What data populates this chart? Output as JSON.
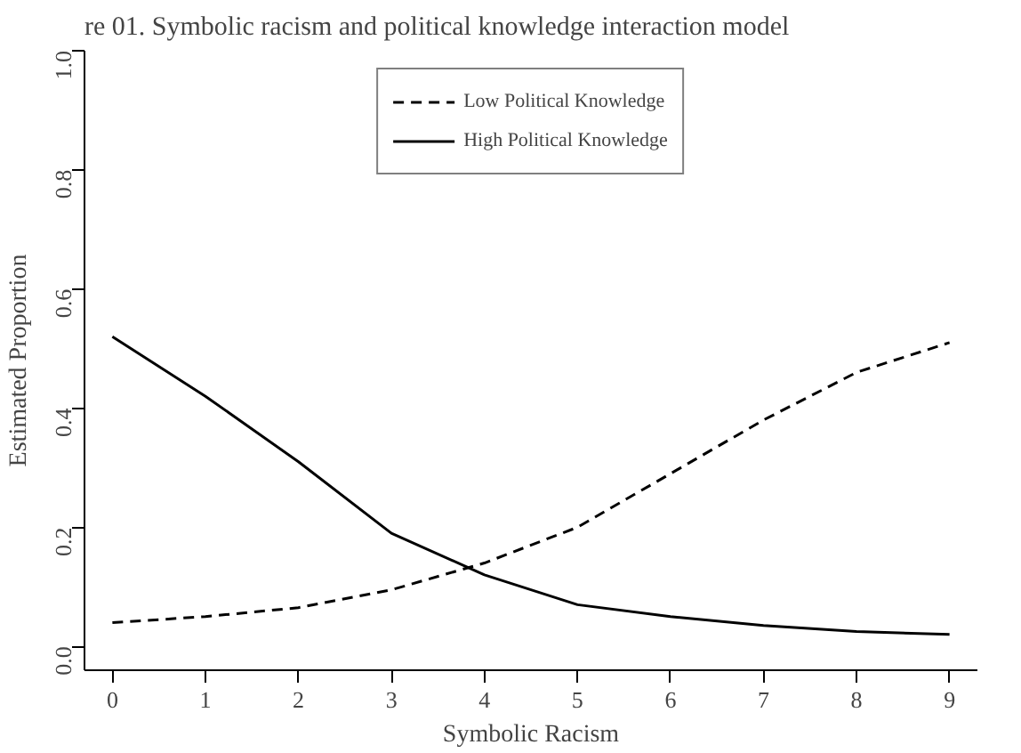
{
  "chart_data": {
    "type": "line",
    "title": "re 01. Symbolic racism and political knowledge interaction model",
    "xlabel": "Symbolic Racism",
    "ylabel": "Estimated Proportion",
    "x": [
      0,
      1,
      2,
      3,
      4,
      5,
      6,
      7,
      8,
      9
    ],
    "series": [
      {
        "name": "Low Political Knowledge",
        "color": "#000000",
        "line_style": "dashed",
        "values": [
          0.04,
          0.05,
          0.065,
          0.095,
          0.14,
          0.2,
          0.29,
          0.38,
          0.46,
          0.51
        ]
      },
      {
        "name": "High Political Knowledge",
        "color": "#000000",
        "line_style": "solid",
        "values": [
          0.52,
          0.42,
          0.31,
          0.19,
          0.12,
          0.07,
          0.05,
          0.035,
          0.025,
          0.02
        ]
      }
    ],
    "xlim": [
      -0.3,
      9.3
    ],
    "ylim": [
      -0.04,
      1.0
    ],
    "xticks": [
      0,
      1,
      2,
      3,
      4,
      5,
      6,
      7,
      8,
      9
    ],
    "yticks": [
      {
        "value": 0,
        "label": "0.0"
      },
      {
        "value": 0.2,
        "label": "0.2"
      },
      {
        "value": 0.4,
        "label": "0.4"
      },
      {
        "value": 0.6,
        "label": "0.6"
      },
      {
        "value": 0.8,
        "label": "0.8"
      },
      {
        "value": 1,
        "label": "1.0"
      }
    ],
    "grid": false,
    "legend": "top",
    "marker": "none"
  }
}
